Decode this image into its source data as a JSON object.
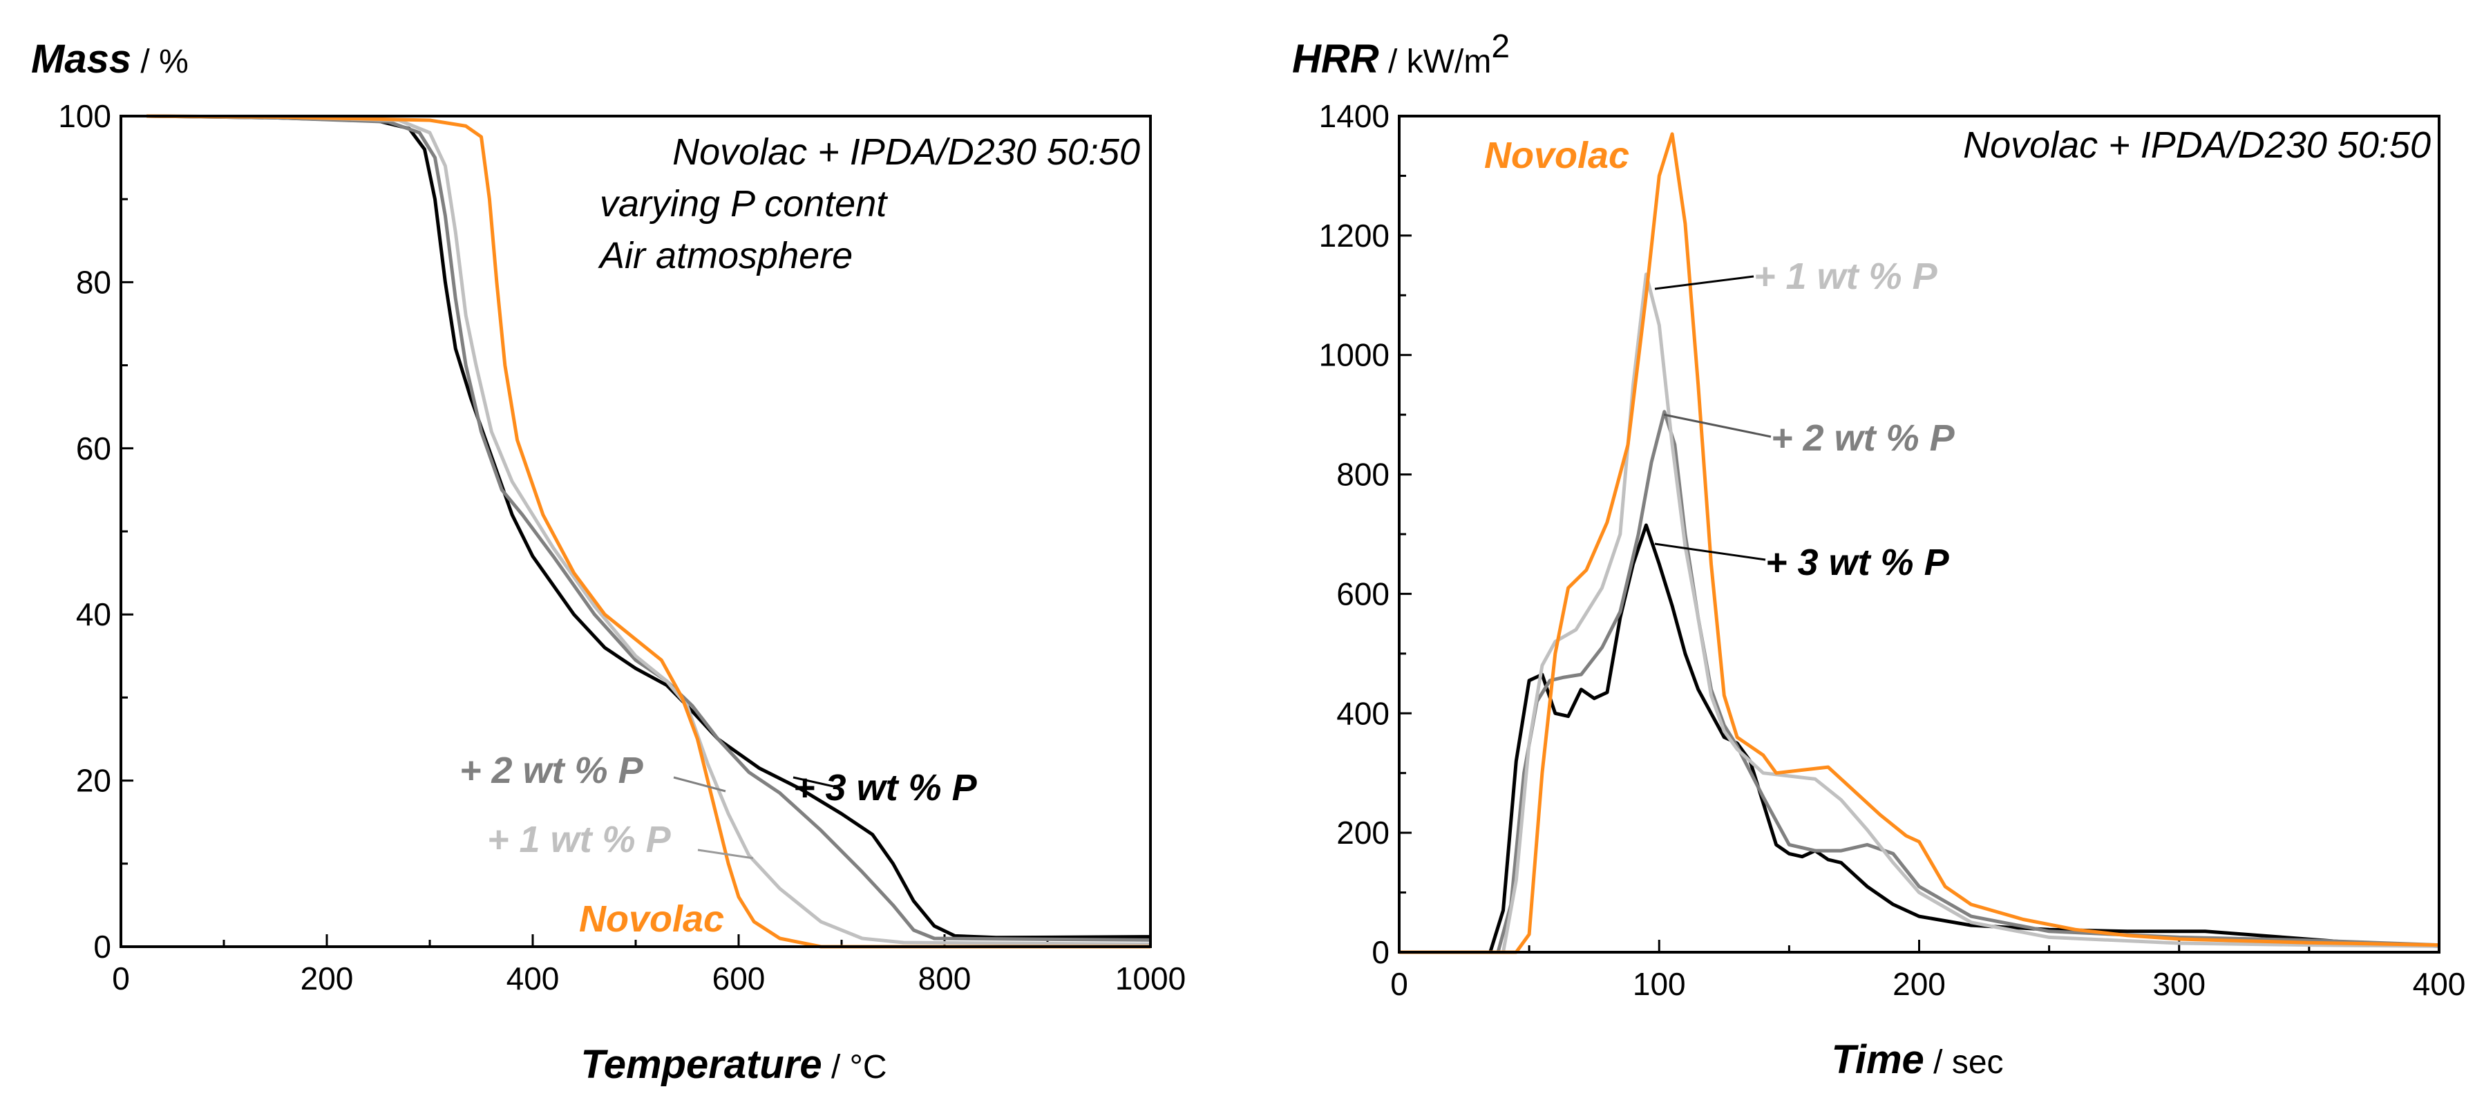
{
  "chart_data": [
    {
      "type": "line",
      "id": "tga",
      "ylabel_main": "Mass",
      "ylabel_unit": " / %",
      "xlabel_main": "Temperature",
      "xlabel_unit": " / °C",
      "xlim": [
        0,
        1000
      ],
      "ylim": [
        0,
        100
      ],
      "xticks": [
        0,
        200,
        400,
        600,
        800,
        1000
      ],
      "yticks": [
        0,
        20,
        40,
        60,
        80,
        100
      ],
      "x_minor_step": 100,
      "y_minor_step": 10,
      "annotation": [
        "Novolac + IPDA/D230 50:50",
        "varying P content",
        "Air atmosphere"
      ],
      "series": [
        {
          "name": "+ 3 wt % P",
          "color": "#000000",
          "points": [
            [
              25,
              100
            ],
            [
              150,
              99.8
            ],
            [
              250,
              99.4
            ],
            [
              280,
              98.5
            ],
            [
              295,
              96
            ],
            [
              305,
              90
            ],
            [
              315,
              80
            ],
            [
              325,
              72
            ],
            [
              340,
              66
            ],
            [
              360,
              59
            ],
            [
              380,
              52
            ],
            [
              400,
              47
            ],
            [
              440,
              40
            ],
            [
              470,
              36
            ],
            [
              500,
              33.5
            ],
            [
              530,
              31.5
            ],
            [
              550,
              29
            ],
            [
              580,
              25
            ],
            [
              620,
              21.5
            ],
            [
              660,
              19
            ],
            [
              700,
              16
            ],
            [
              730,
              13.5
            ],
            [
              750,
              10
            ],
            [
              770,
              5.5
            ],
            [
              790,
              2.5
            ],
            [
              810,
              1.3
            ],
            [
              850,
              1.1
            ],
            [
              1000,
              1.2
            ]
          ]
        },
        {
          "name": "+ 2 wt % P",
          "color": "#808080",
          "points": [
            [
              25,
              100
            ],
            [
              150,
              99.8
            ],
            [
              260,
              99.3
            ],
            [
              290,
              98
            ],
            [
              305,
              95
            ],
            [
              315,
              88
            ],
            [
              325,
              78
            ],
            [
              335,
              70
            ],
            [
              350,
              62
            ],
            [
              370,
              55
            ],
            [
              390,
              52
            ],
            [
              420,
              47
            ],
            [
              460,
              40
            ],
            [
              500,
              34.5
            ],
            [
              530,
              32
            ],
            [
              555,
              29
            ],
            [
              580,
              25
            ],
            [
              610,
              21
            ],
            [
              640,
              18.5
            ],
            [
              680,
              14
            ],
            [
              720,
              9
            ],
            [
              750,
              5
            ],
            [
              770,
              2
            ],
            [
              790,
              1
            ],
            [
              1000,
              0.8
            ]
          ]
        },
        {
          "name": "+ 1 wt % P",
          "color": "#C0C0C0",
          "points": [
            [
              25,
              100
            ],
            [
              150,
              99.9
            ],
            [
              270,
              99.5
            ],
            [
              300,
              98
            ],
            [
              315,
              94
            ],
            [
              325,
              86
            ],
            [
              335,
              76
            ],
            [
              345,
              70
            ],
            [
              360,
              62
            ],
            [
              380,
              56
            ],
            [
              420,
              48
            ],
            [
              460,
              41
            ],
            [
              500,
              35
            ],
            [
              530,
              32
            ],
            [
              550,
              29
            ],
            [
              570,
              22
            ],
            [
              590,
              16
            ],
            [
              610,
              11
            ],
            [
              640,
              7
            ],
            [
              680,
              3
            ],
            [
              720,
              1
            ],
            [
              760,
              0.5
            ],
            [
              1000,
              0.3
            ]
          ]
        },
        {
          "name": "Novolac",
          "color": "#FF8C1A",
          "points": [
            [
              25,
              100
            ],
            [
              150,
              99.9
            ],
            [
              300,
              99.5
            ],
            [
              335,
              98.8
            ],
            [
              350,
              97.5
            ],
            [
              358,
              90
            ],
            [
              365,
              80
            ],
            [
              373,
              70
            ],
            [
              385,
              61
            ],
            [
              410,
              52
            ],
            [
              440,
              45
            ],
            [
              470,
              40
            ],
            [
              500,
              37
            ],
            [
              525,
              34.5
            ],
            [
              545,
              30
            ],
            [
              560,
              25
            ],
            [
              570,
              20
            ],
            [
              580,
              15
            ],
            [
              590,
              10
            ],
            [
              600,
              6
            ],
            [
              615,
              3
            ],
            [
              640,
              1
            ],
            [
              680,
              0
            ],
            [
              1000,
              0
            ]
          ]
        }
      ],
      "labels": [
        {
          "text": "+ 3 wt % P",
          "color": "#000000"
        },
        {
          "text": "+ 2 wt % P",
          "color": "#808080"
        },
        {
          "text": "+ 1 wt % P",
          "color": "#C0C0C0"
        },
        {
          "text": "Novolac",
          "color": "#FF8C1A"
        }
      ]
    },
    {
      "type": "line",
      "id": "hrr",
      "ylabel_main": "HRR",
      "ylabel_unit": " / kW/m",
      "ylabel_sup": "2",
      "xlabel_main": "Time",
      "xlabel_unit": " / sec",
      "xlim": [
        0,
        400
      ],
      "ylim": [
        0,
        1400
      ],
      "xticks": [
        0,
        100,
        200,
        300,
        400
      ],
      "yticks": [
        0,
        200,
        400,
        600,
        800,
        1000,
        1200,
        1400
      ],
      "x_minor_step": 50,
      "y_minor_step": 100,
      "annotation": [
        "Novolac + IPDA/D230 50:50"
      ],
      "series": [
        {
          "name": "+ 3 wt % P",
          "color": "#000000",
          "points": [
            [
              0,
              0
            ],
            [
              35,
              0
            ],
            [
              40,
              70
            ],
            [
              45,
              320
            ],
            [
              50,
              455
            ],
            [
              55,
              465
            ],
            [
              60,
              400
            ],
            [
              65,
              395
            ],
            [
              70,
              440
            ],
            [
              75,
              425
            ],
            [
              80,
              435
            ],
            [
              85,
              560
            ],
            [
              90,
              650
            ],
            [
              95,
              715
            ],
            [
              100,
              650
            ],
            [
              105,
              580
            ],
            [
              110,
              500
            ],
            [
              115,
              440
            ],
            [
              120,
              400
            ],
            [
              125,
              360
            ],
            [
              130,
              350
            ],
            [
              135,
              320
            ],
            [
              140,
              250
            ],
            [
              145,
              180
            ],
            [
              150,
              165
            ],
            [
              155,
              160
            ],
            [
              160,
              170
            ],
            [
              165,
              155
            ],
            [
              170,
              150
            ],
            [
              180,
              110
            ],
            [
              190,
              80
            ],
            [
              200,
              60
            ],
            [
              220,
              45
            ],
            [
              250,
              38
            ],
            [
              280,
              35
            ],
            [
              310,
              35
            ],
            [
              340,
              25
            ],
            [
              370,
              15
            ],
            [
              400,
              10
            ]
          ]
        },
        {
          "name": "+ 2 wt % P",
          "color": "#808080",
          "points": [
            [
              0,
              0
            ],
            [
              38,
              0
            ],
            [
              43,
              80
            ],
            [
              48,
              300
            ],
            [
              53,
              420
            ],
            [
              58,
              455
            ],
            [
              63,
              460
            ],
            [
              70,
              465
            ],
            [
              78,
              510
            ],
            [
              85,
              570
            ],
            [
              92,
              700
            ],
            [
              97,
              820
            ],
            [
              102,
              905
            ],
            [
              106,
              850
            ],
            [
              110,
              700
            ],
            [
              115,
              560
            ],
            [
              120,
              440
            ],
            [
              125,
              380
            ],
            [
              130,
              345
            ],
            [
              140,
              260
            ],
            [
              150,
              180
            ],
            [
              160,
              170
            ],
            [
              170,
              170
            ],
            [
              180,
              180
            ],
            [
              190,
              165
            ],
            [
              200,
              110
            ],
            [
              220,
              60
            ],
            [
              250,
              35
            ],
            [
              300,
              25
            ],
            [
              350,
              20
            ],
            [
              400,
              12
            ]
          ]
        },
        {
          "name": "+ 1 wt % P",
          "color": "#C0C0C0",
          "points": [
            [
              0,
              0
            ],
            [
              40,
              0
            ],
            [
              45,
              120
            ],
            [
              50,
              350
            ],
            [
              55,
              480
            ],
            [
              60,
              520
            ],
            [
              68,
              540
            ],
            [
              78,
              610
            ],
            [
              85,
              700
            ],
            [
              90,
              950
            ],
            [
              95,
              1135
            ],
            [
              100,
              1050
            ],
            [
              105,
              850
            ],
            [
              110,
              680
            ],
            [
              115,
              560
            ],
            [
              120,
              430
            ],
            [
              125,
              370
            ],
            [
              130,
              340
            ],
            [
              140,
              300
            ],
            [
              150,
              295
            ],
            [
              160,
              290
            ],
            [
              170,
              255
            ],
            [
              180,
              205
            ],
            [
              190,
              150
            ],
            [
              200,
              100
            ],
            [
              220,
              50
            ],
            [
              250,
              25
            ],
            [
              300,
              15
            ],
            [
              350,
              12
            ],
            [
              400,
              10
            ]
          ]
        },
        {
          "name": "Novolac",
          "color": "#FF8C1A",
          "points": [
            [
              0,
              0
            ],
            [
              45,
              0
            ],
            [
              50,
              30
            ],
            [
              55,
              300
            ],
            [
              60,
              500
            ],
            [
              65,
              610
            ],
            [
              72,
              640
            ],
            [
              80,
              720
            ],
            [
              88,
              850
            ],
            [
              95,
              1100
            ],
            [
              100,
              1300
            ],
            [
              105,
              1370
            ],
            [
              110,
              1220
            ],
            [
              115,
              950
            ],
            [
              120,
              650
            ],
            [
              125,
              430
            ],
            [
              130,
              360
            ],
            [
              140,
              330
            ],
            [
              145,
              300
            ],
            [
              155,
              305
            ],
            [
              165,
              310
            ],
            [
              175,
              270
            ],
            [
              185,
              230
            ],
            [
              195,
              195
            ],
            [
              200,
              185
            ],
            [
              210,
              110
            ],
            [
              220,
              80
            ],
            [
              240,
              55
            ],
            [
              260,
              38
            ],
            [
              280,
              28
            ],
            [
              300,
              22
            ],
            [
              350,
              16
            ],
            [
              400,
              12
            ]
          ]
        }
      ],
      "labels": [
        {
          "text": "Novolac",
          "color": "#FF8C1A"
        },
        {
          "text": "+ 1 wt % P",
          "color": "#C0C0C0"
        },
        {
          "text": "+ 2 wt % P",
          "color": "#808080"
        },
        {
          "text": "+ 3 wt % P",
          "color": "#000000"
        }
      ]
    }
  ]
}
